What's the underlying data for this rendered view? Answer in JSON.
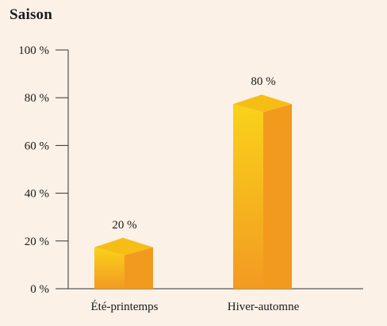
{
  "chart_data": {
    "type": "bar",
    "title": "Saison",
    "categories": [
      "Été-printemps",
      "Hiver-automne"
    ],
    "values": [
      20,
      80
    ],
    "data_labels": [
      "20 %",
      "80 %"
    ],
    "yticks": [
      0,
      20,
      40,
      60,
      80,
      100
    ],
    "ytick_labels": [
      "0 %",
      "20 %",
      "40 %",
      "60 %",
      "80 %",
      "100 %"
    ],
    "ylim": [
      0,
      100
    ],
    "grid": false,
    "bar_style": "3d",
    "colors": {
      "background": "#fbf1e7",
      "bar_front_top": "#f9d21a",
      "bar_front_bottom": "#f39a22",
      "bar_side": "#f29a1d",
      "bar_top": "#f7bd17",
      "axis": "#333333"
    }
  }
}
